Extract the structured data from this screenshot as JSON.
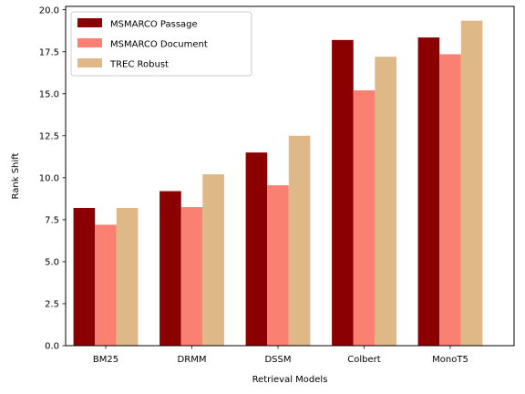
{
  "chart_data": {
    "type": "bar",
    "title": "",
    "xlabel": "Retrieval Models",
    "ylabel": "Rank Shift",
    "categories": [
      "BM25",
      "DRMM",
      "DSSM",
      "Colbert",
      "MonoT5"
    ],
    "series": [
      {
        "name": "MSMARCO Passage",
        "color": "#8b0000",
        "values": [
          8.2,
          9.2,
          11.5,
          18.2,
          18.35
        ]
      },
      {
        "name": "MSMARCO Document",
        "color": "#fa8072",
        "values": [
          7.2,
          8.25,
          9.55,
          15.2,
          17.35
        ]
      },
      {
        "name": "TREC Robust",
        "color": "#deb887",
        "values": [
          8.2,
          10.2,
          12.5,
          17.2,
          19.35
        ]
      }
    ],
    "ylim": [
      0,
      20.2
    ],
    "yticks": [
      0.0,
      2.5,
      5.0,
      7.5,
      10.0,
      12.5,
      15.0,
      17.5,
      20.0
    ],
    "ytick_labels": [
      "0.0",
      "2.5",
      "5.0",
      "7.5",
      "10.0",
      "12.5",
      "15.0",
      "17.5",
      "20.0"
    ],
    "grid": false,
    "legend_position": "top-left"
  }
}
